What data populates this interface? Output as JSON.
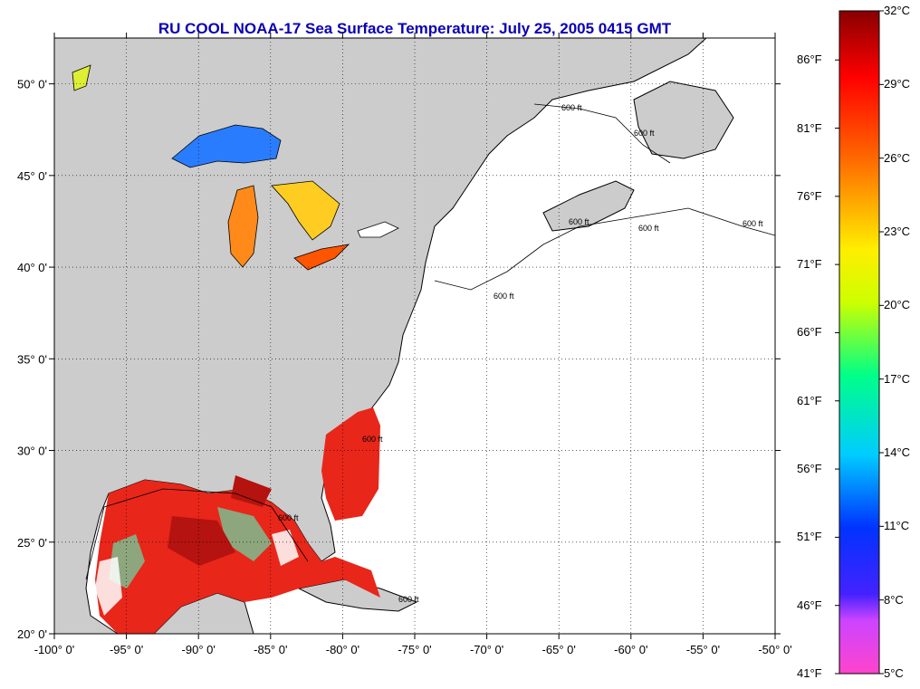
{
  "title": "RU COOL  NOAA-17  Sea Surface Temperature:  July 25, 2005 0415 GMT",
  "map": {
    "lon_range": [
      -100,
      -50
    ],
    "lat_range": [
      20,
      52.5
    ],
    "grid": "dotted",
    "land_color": "#cccccc",
    "no_data_color": "#ffffff",
    "lon_ticks": [
      {
        "value": -100,
        "label": "-100° 0'"
      },
      {
        "value": -95,
        "label": "-95° 0'"
      },
      {
        "value": -90,
        "label": "-90° 0'"
      },
      {
        "value": -85,
        "label": "-85° 0'"
      },
      {
        "value": -80,
        "label": "-80° 0'"
      },
      {
        "value": -75,
        "label": "-75° 0'"
      },
      {
        "value": -70,
        "label": "-70° 0'"
      },
      {
        "value": -65,
        "label": "-65° 0'"
      },
      {
        "value": -60,
        "label": "-60° 0'"
      },
      {
        "value": -55,
        "label": "-55° 0'"
      },
      {
        "value": -50,
        "label": "-50° 0'"
      }
    ],
    "lat_ticks": [
      {
        "value": 20,
        "label": "20° 0'"
      },
      {
        "value": 25,
        "label": "25° 0'"
      },
      {
        "value": 30,
        "label": "30° 0'"
      },
      {
        "value": 35,
        "label": "35° 0'"
      },
      {
        "value": 40,
        "label": "40° 0'"
      },
      {
        "value": 45,
        "label": "45° 0'"
      },
      {
        "value": 50,
        "label": "50° 0'"
      }
    ],
    "contour_labels": [
      "600 ft",
      "600 ft",
      "600 ft",
      "600 ft",
      "600 ft",
      "600 ft",
      "600 ft",
      "600 ft",
      "600 ft"
    ]
  },
  "colorbar": {
    "colors": [
      "#ff44cc",
      "#aa33ff",
      "#0000ff",
      "#00ccff",
      "#00ff66",
      "#ffff00",
      "#ff8800",
      "#ff0000",
      "#8b0000"
    ],
    "celsius_labels": [
      {
        "value": 5,
        "label": "5°C"
      },
      {
        "value": 8,
        "label": "8°C"
      },
      {
        "value": 11,
        "label": "11°C"
      },
      {
        "value": 14,
        "label": "14°C"
      },
      {
        "value": 17,
        "label": "17°C"
      },
      {
        "value": 20,
        "label": "20°C"
      },
      {
        "value": 23,
        "label": "23°C"
      },
      {
        "value": 26,
        "label": "26°C"
      },
      {
        "value": 29,
        "label": "29°C"
      },
      {
        "value": 32,
        "label": "32°C"
      }
    ],
    "fahrenheit_labels": [
      {
        "value": 41,
        "label": "41°F"
      },
      {
        "value": 46,
        "label": "46°F"
      },
      {
        "value": 51,
        "label": "51°F"
      },
      {
        "value": 56,
        "label": "56°F"
      },
      {
        "value": 61,
        "label": "61°F"
      },
      {
        "value": 66,
        "label": "66°F"
      },
      {
        "value": 71,
        "label": "71°F"
      },
      {
        "value": 76,
        "label": "76°F"
      },
      {
        "value": 81,
        "label": "81°F"
      },
      {
        "value": 86,
        "label": "86°F"
      }
    ]
  }
}
